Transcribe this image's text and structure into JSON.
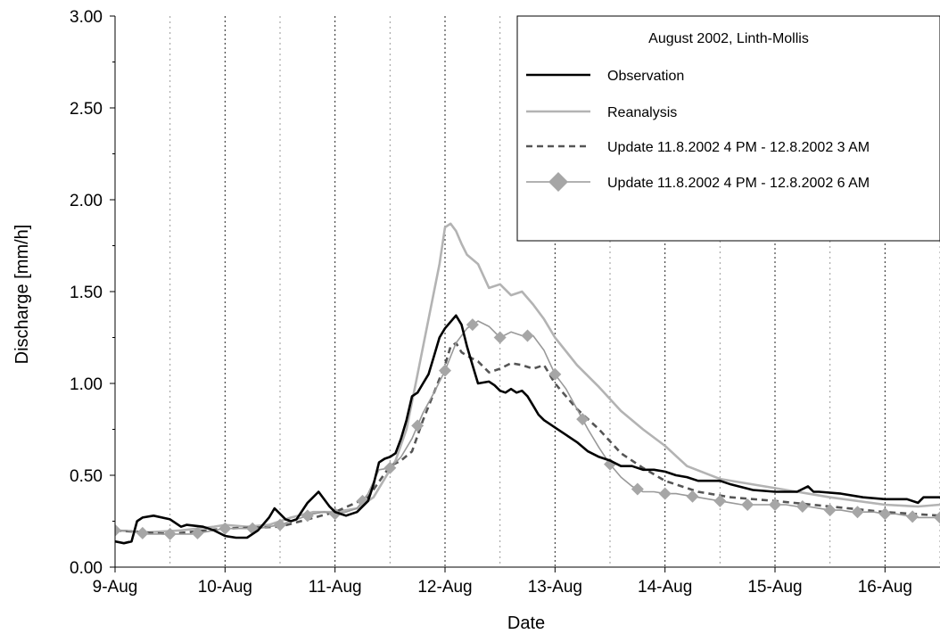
{
  "chart_data": {
    "type": "line",
    "title": "August 2002, Linth-Mollis",
    "xlabel": "Date",
    "ylabel": "Discharge [mm/h]",
    "xlim": [
      0,
      7.5
    ],
    "ylim": [
      0,
      3
    ],
    "x_unit": "days since 9-Aug 00:00",
    "x_ticks": [
      {
        "x": 0,
        "label": "9-Aug"
      },
      {
        "x": 1,
        "label": "10-Aug"
      },
      {
        "x": 2,
        "label": "11-Aug"
      },
      {
        "x": 3,
        "label": "12-Aug"
      },
      {
        "x": 4,
        "label": "13-Aug"
      },
      {
        "x": 5,
        "label": "14-Aug"
      },
      {
        "x": 6,
        "label": "15-Aug"
      },
      {
        "x": 7,
        "label": "16-Aug"
      }
    ],
    "y_ticks": [
      "0.00",
      "0.50",
      "1.00",
      "1.50",
      "2.00",
      "2.50",
      "3.00"
    ],
    "grid": "vertical dotted lines every 12 h",
    "legend_position": "top-right",
    "series": [
      {
        "name": "Observation",
        "color": "#000000",
        "style": "solid",
        "x": [
          0,
          0.08,
          0.15,
          0.2,
          0.25,
          0.35,
          0.5,
          0.6,
          0.65,
          0.8,
          0.9,
          1.0,
          1.1,
          1.2,
          1.3,
          1.4,
          1.45,
          1.55,
          1.6,
          1.65,
          1.75,
          1.85,
          1.95,
          2.0,
          2.1,
          2.2,
          2.3,
          2.35,
          2.4,
          2.45,
          2.5,
          2.55,
          2.6,
          2.65,
          2.7,
          2.75,
          2.8,
          2.85,
          2.9,
          2.95,
          3.0,
          3.1,
          3.15,
          3.2,
          3.25,
          3.3,
          3.4,
          3.45,
          3.5,
          3.55,
          3.6,
          3.65,
          3.7,
          3.75,
          3.8,
          3.85,
          3.9,
          3.95,
          4.0,
          4.1,
          4.2,
          4.3,
          4.4,
          4.5,
          4.6,
          4.7,
          4.8,
          4.9,
          5.0,
          5.1,
          5.2,
          5.3,
          5.4,
          5.5,
          5.6,
          5.8,
          6.0,
          6.2,
          6.3,
          6.35,
          6.4,
          6.6,
          6.8,
          7.0,
          7.2,
          7.3,
          7.35,
          7.5
        ],
        "y": [
          0.14,
          0.13,
          0.14,
          0.25,
          0.27,
          0.28,
          0.26,
          0.22,
          0.23,
          0.22,
          0.2,
          0.17,
          0.16,
          0.16,
          0.2,
          0.27,
          0.32,
          0.26,
          0.25,
          0.26,
          0.35,
          0.41,
          0.33,
          0.3,
          0.28,
          0.3,
          0.36,
          0.45,
          0.57,
          0.59,
          0.6,
          0.62,
          0.7,
          0.8,
          0.93,
          0.95,
          1.0,
          1.05,
          1.15,
          1.25,
          1.3,
          1.37,
          1.32,
          1.2,
          1.1,
          1.0,
          1.01,
          0.99,
          0.96,
          0.95,
          0.97,
          0.95,
          0.96,
          0.93,
          0.88,
          0.83,
          0.8,
          0.78,
          0.76,
          0.72,
          0.68,
          0.63,
          0.6,
          0.58,
          0.55,
          0.55,
          0.53,
          0.53,
          0.52,
          0.5,
          0.49,
          0.47,
          0.47,
          0.47,
          0.45,
          0.42,
          0.41,
          0.41,
          0.44,
          0.41,
          0.41,
          0.4,
          0.38,
          0.37,
          0.37,
          0.35,
          0.38,
          0.38
        ]
      },
      {
        "name": "Reanalysis",
        "color": "#b3b3b3",
        "style": "solid",
        "x": [
          0,
          0.3,
          0.6,
          0.9,
          1.0,
          1.2,
          1.4,
          1.6,
          1.8,
          2.0,
          2.2,
          2.35,
          2.45,
          2.55,
          2.65,
          2.75,
          2.85,
          2.95,
          3.0,
          3.05,
          3.1,
          3.15,
          3.2,
          3.3,
          3.4,
          3.5,
          3.6,
          3.7,
          3.8,
          3.9,
          4.0,
          4.2,
          4.4,
          4.6,
          4.8,
          5.0,
          5.2,
          5.5,
          6.0,
          6.5,
          7.0,
          7.3,
          7.5
        ],
        "y": [
          0.2,
          0.19,
          0.2,
          0.22,
          0.23,
          0.22,
          0.23,
          0.27,
          0.3,
          0.3,
          0.32,
          0.38,
          0.48,
          0.58,
          0.75,
          1.05,
          1.35,
          1.65,
          1.85,
          1.87,
          1.83,
          1.76,
          1.7,
          1.65,
          1.52,
          1.54,
          1.48,
          1.5,
          1.43,
          1.35,
          1.25,
          1.1,
          0.98,
          0.85,
          0.75,
          0.66,
          0.55,
          0.48,
          0.43,
          0.38,
          0.34,
          0.33,
          0.34
        ]
      },
      {
        "name": "Update 11.8.2002 4 PM - 12.8.2002 3 AM",
        "color": "#555555",
        "style": "dashed",
        "x": [
          0,
          0.5,
          1.0,
          1.5,
          2.0,
          2.3,
          2.5,
          2.6,
          2.7,
          2.8,
          2.9,
          3.0,
          3.05,
          3.1,
          3.15,
          3.2,
          3.3,
          3.4,
          3.5,
          3.6,
          3.7,
          3.8,
          3.9,
          4.0,
          4.2,
          4.4,
          4.6,
          4.8,
          5.0,
          5.3,
          5.6,
          6.0,
          6.5,
          7.0,
          7.5
        ],
        "y": [
          0.2,
          0.18,
          0.21,
          0.22,
          0.3,
          0.38,
          0.55,
          0.58,
          0.63,
          0.8,
          0.95,
          1.1,
          1.2,
          1.22,
          1.17,
          1.15,
          1.12,
          1.06,
          1.08,
          1.11,
          1.1,
          1.08,
          1.1,
          1.0,
          0.86,
          0.75,
          0.62,
          0.54,
          0.47,
          0.41,
          0.38,
          0.36,
          0.33,
          0.3,
          0.28
        ]
      },
      {
        "name": "Update 11.8.2002 4 PM - 12.8.2002 6 AM",
        "color": "#999999",
        "marker_color": "#a6a6a6",
        "style": "solid-diamond",
        "x": [
          0,
          0.1,
          0.2,
          0.3,
          0.4,
          0.5,
          0.6,
          0.7,
          0.8,
          0.9,
          1.0,
          1.1,
          1.2,
          1.3,
          1.4,
          1.5,
          1.6,
          1.7,
          1.8,
          1.9,
          2.0,
          2.1,
          2.2,
          2.3,
          2.4,
          2.5,
          2.6,
          2.7,
          2.8,
          2.9,
          3.0,
          3.1,
          3.2,
          3.3,
          3.4,
          3.5,
          3.6,
          3.7,
          3.8,
          3.9,
          4.0,
          4.1,
          4.2,
          4.3,
          4.4,
          4.5,
          4.6,
          4.7,
          4.8,
          4.9,
          5.0,
          5.1,
          5.2,
          5.3,
          5.4,
          5.5,
          5.6,
          5.7,
          5.8,
          5.9,
          6.0,
          6.1,
          6.2,
          6.3,
          6.4,
          6.5,
          6.6,
          6.7,
          6.8,
          6.9,
          7.0,
          7.1,
          7.2,
          7.3,
          7.4,
          7.5
        ],
        "y": [
          0.2,
          0.2,
          0.19,
          0.18,
          0.18,
          0.18,
          0.18,
          0.18,
          0.19,
          0.2,
          0.21,
          0.21,
          0.21,
          0.21,
          0.22,
          0.23,
          0.25,
          0.27,
          0.29,
          0.3,
          0.29,
          0.3,
          0.32,
          0.4,
          0.53,
          0.54,
          0.6,
          0.7,
          0.84,
          0.95,
          1.07,
          1.22,
          1.3,
          1.34,
          1.31,
          1.25,
          1.28,
          1.26,
          1.26,
          1.18,
          1.05,
          0.97,
          0.86,
          0.75,
          0.65,
          0.56,
          0.49,
          0.44,
          0.41,
          0.41,
          0.4,
          0.4,
          0.39,
          0.38,
          0.37,
          0.36,
          0.35,
          0.34,
          0.34,
          0.34,
          0.34,
          0.34,
          0.33,
          0.33,
          0.32,
          0.31,
          0.31,
          0.3,
          0.3,
          0.3,
          0.29,
          0.29,
          0.28,
          0.27,
          0.27,
          0.27
        ],
        "marker_x": [
          0,
          0.25,
          0.5,
          0.75,
          1.0,
          1.25,
          1.5,
          1.75,
          2.0,
          2.25,
          2.5,
          2.75,
          3.0,
          3.25,
          3.5,
          3.75,
          4.0,
          4.25,
          4.5,
          4.75,
          5.0,
          5.25,
          5.5,
          5.75,
          6.0,
          6.25,
          6.5,
          6.75,
          7.0,
          7.25,
          7.5
        ]
      }
    ]
  }
}
